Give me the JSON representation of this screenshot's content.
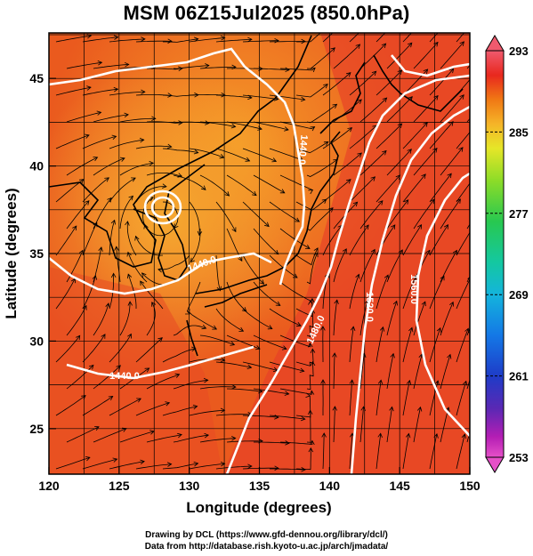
{
  "title": "MSM 06Z15Jul2025 (850.0hPa)",
  "credits": {
    "line1": "Drawing by DCL (https://www.gfd-dennou.org/library/dcl/)",
    "line2": "Data from http://database.rish.kyoto-u.ac.jp/arch/jmadata/"
  },
  "map": {
    "xlabel": "Longitude (degrees)",
    "ylabel": "Latitude  (degrees)",
    "xticks": [
      "120",
      "125",
      "130",
      "135",
      "140",
      "145",
      "150"
    ],
    "yticks": [
      "25",
      "30",
      "35",
      "40",
      "45"
    ],
    "xrange": [
      120,
      150
    ],
    "yrange": [
      22.4,
      47.6
    ],
    "field": "temperature",
    "overlays": [
      "geopotential-height-contours",
      "wind-streamlines",
      "coastlines",
      "lat-lon-grid"
    ],
    "contours": [
      {
        "label": "1440.0"
      },
      {
        "label": "1440.0"
      },
      {
        "label": "1440.0"
      },
      {
        "label": "1480.0"
      },
      {
        "label": "1520.0"
      },
      {
        "label": "1560.0"
      }
    ]
  },
  "colorbar": {
    "ticks": [
      "293",
      "285",
      "277",
      "269",
      "261",
      "253"
    ],
    "colors": [
      "#f05a6e",
      "#e8281e",
      "#f07814",
      "#f5b428",
      "#e6e628",
      "#8cdc28",
      "#28c850",
      "#14c8a0",
      "#14b4dc",
      "#1478e6",
      "#1e3cc8",
      "#5a28b4",
      "#b41eb4",
      "#e650c8"
    ]
  }
}
